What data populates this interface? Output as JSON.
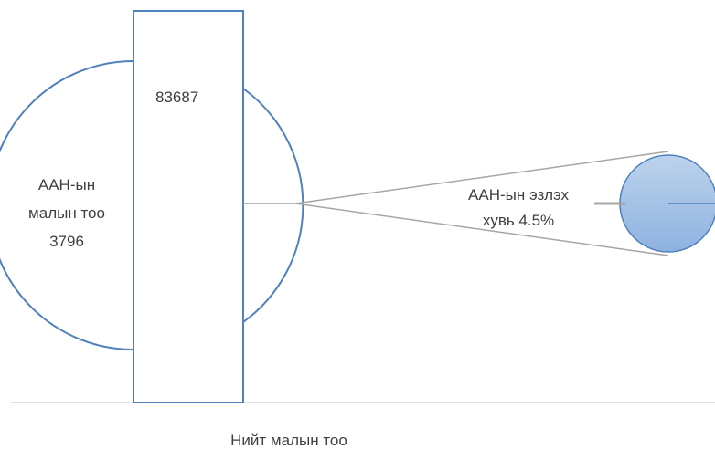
{
  "chart_data": {
    "type": "bar",
    "categories": [
      "Нийт малын тоо"
    ],
    "values": [
      83687
    ],
    "part_value": 3796,
    "percent_value": 4.5,
    "xlabel": "Нийт малын тоо",
    "bar_label": "83687",
    "circle_label": [
      "ААН-ын",
      "малын тоо",
      "3796"
    ],
    "percent_label": [
      "ААН-ын эзлэх",
      "хувь 4.5%"
    ],
    "grid": false,
    "legend": "none"
  },
  "colors": {
    "bar_border": "#4f81bd",
    "circle_border": "#4f81bd",
    "small_circle_top": "#bcd3ec",
    "small_circle_bottom": "#8eb2e0",
    "connector": "#a6a6a6",
    "axis": "#d9d9d9",
    "text": "#404040"
  }
}
